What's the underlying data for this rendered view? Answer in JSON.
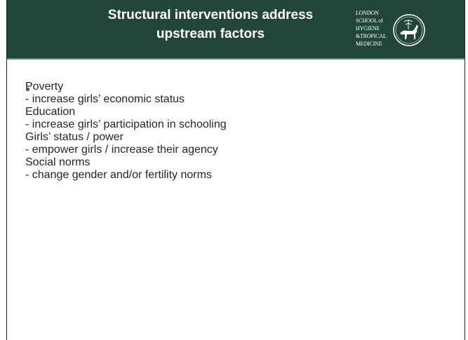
{
  "header": {
    "title": [
      "Structural interventions address",
      "upstream factors"
    ],
    "logo": [
      "LONDON",
      "SCHOOL of",
      "HYGIENE",
      "&TROPICAL",
      "MEDICINE"
    ]
  },
  "bullets": [
    {
      "heading": "Poverty",
      "detail": "- increase girls’ economic status"
    },
    {
      "heading": "Education",
      "detail": "- increase girls’ participation in schooling"
    },
    {
      "heading": "Girls’ status / power",
      "detail": "- empower girls / increase their agency"
    },
    {
      "heading": "Social norms",
      "detail": "- change gender and/or fertility norms"
    }
  ]
}
